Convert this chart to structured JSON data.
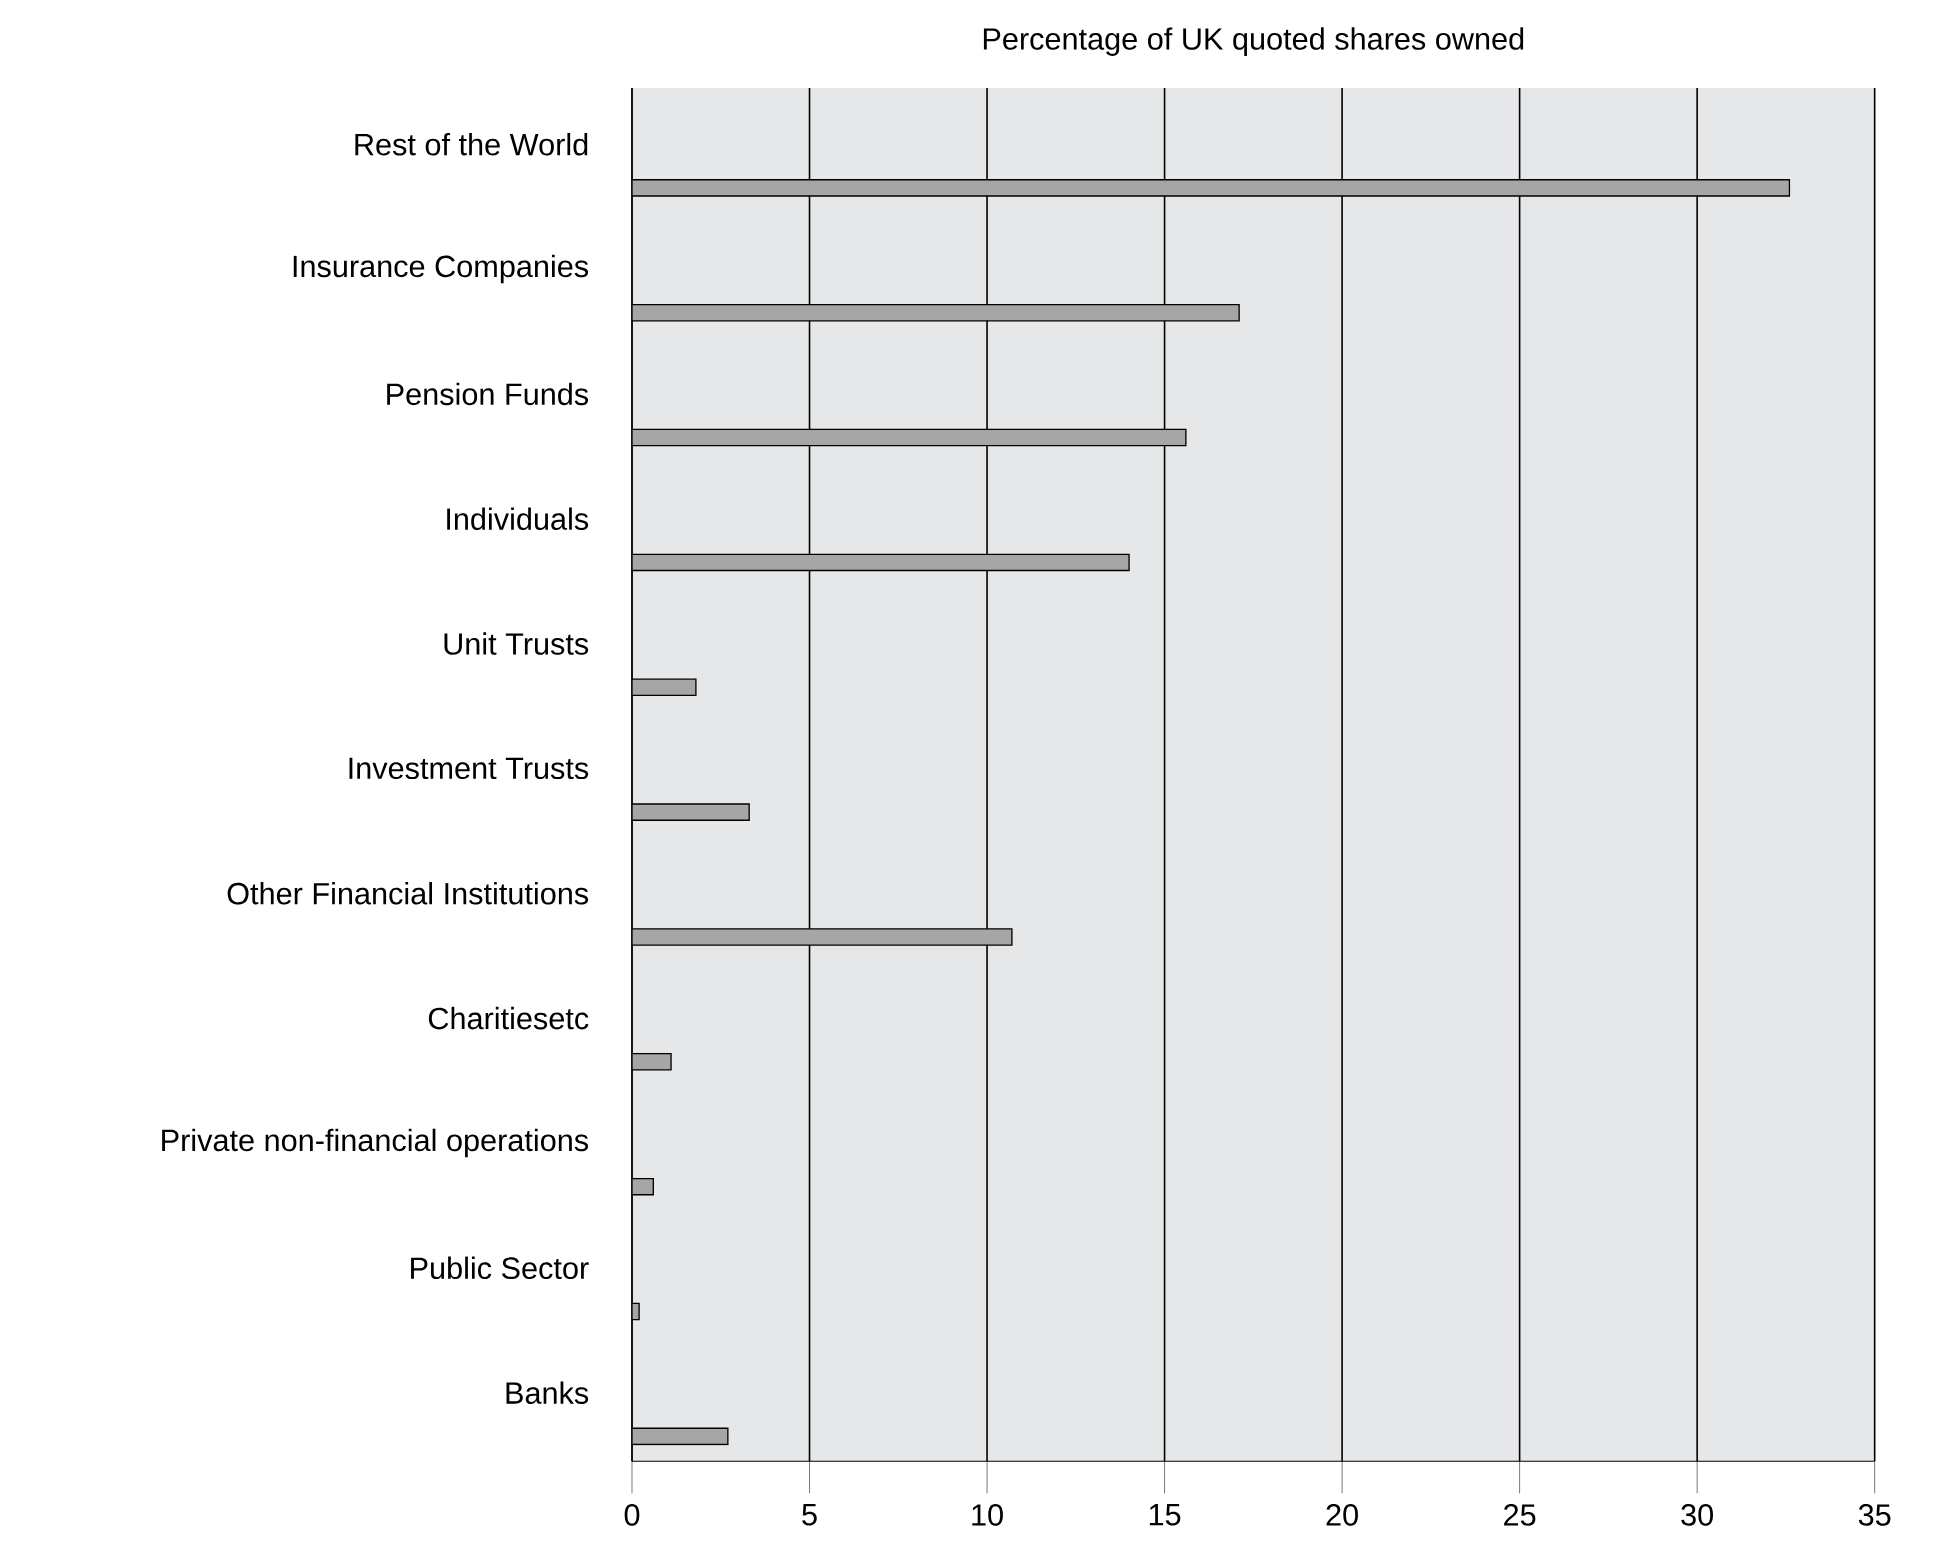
{
  "chart_data": {
    "type": "bar",
    "orientation": "horizontal",
    "xlabel": "Percentage of UK quoted shares owned",
    "categories": [
      "Rest of the World",
      "Insurance Companies",
      "Pension Funds",
      "Individuals",
      "Unit Trusts",
      "Investment Trusts",
      "Other Financial Institutions",
      "Charitiesetc",
      "Private non-financial operations",
      "Public Sector",
      "Banks"
    ],
    "values": [
      32.6,
      17.1,
      15.6,
      14.0,
      1.8,
      3.3,
      10.7,
      1.1,
      0.6,
      0.2,
      2.7
    ],
    "color": "#a6a6a6",
    "xlim": [
      0,
      35
    ],
    "xticks": [
      0,
      5,
      10,
      15,
      20,
      25,
      30,
      35
    ],
    "grid": "x"
  }
}
